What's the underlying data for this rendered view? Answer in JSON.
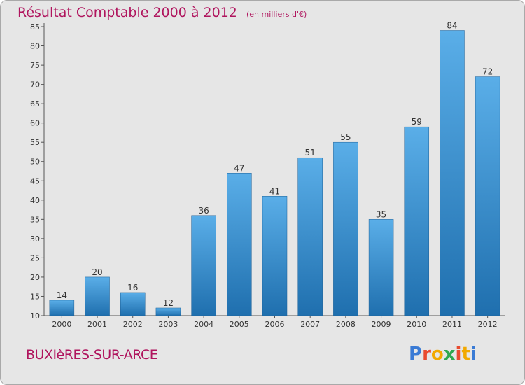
{
  "chart_data": {
    "type": "bar",
    "title": "Résultat Comptable 2000 à 2012",
    "subtitle": "(en milliers d'€)",
    "categories": [
      "2000",
      "2001",
      "2002",
      "2003",
      "2004",
      "2005",
      "2006",
      "2007",
      "2008",
      "2009",
      "2010",
      "2011",
      "2012"
    ],
    "values": [
      14,
      20,
      16,
      12,
      36,
      47,
      41,
      51,
      55,
      35,
      59,
      84,
      72
    ],
    "ylim": [
      10,
      85
    ],
    "yticks": [
      10,
      15,
      20,
      25,
      30,
      35,
      40,
      45,
      50,
      55,
      60,
      65,
      70,
      75,
      80,
      85
    ],
    "xlabel": "",
    "ylabel": "",
    "grid": false,
    "colors": {
      "bar_top": "#5aaee8",
      "bar_bottom": "#1f6fae",
      "title": "#b0155e",
      "background": "#e6e6e6"
    }
  },
  "footer": {
    "commune": "BUXIèRES-SUR-ARCE",
    "logo_letters": [
      "P",
      "r",
      "o",
      "x",
      "i",
      "t",
      "i"
    ],
    "logo_colors": [
      "#3a7bd5",
      "#e94b2f",
      "#f2a900",
      "#2fa84f",
      "#e94b2f",
      "#f2a900",
      "#3a7bd5"
    ]
  }
}
